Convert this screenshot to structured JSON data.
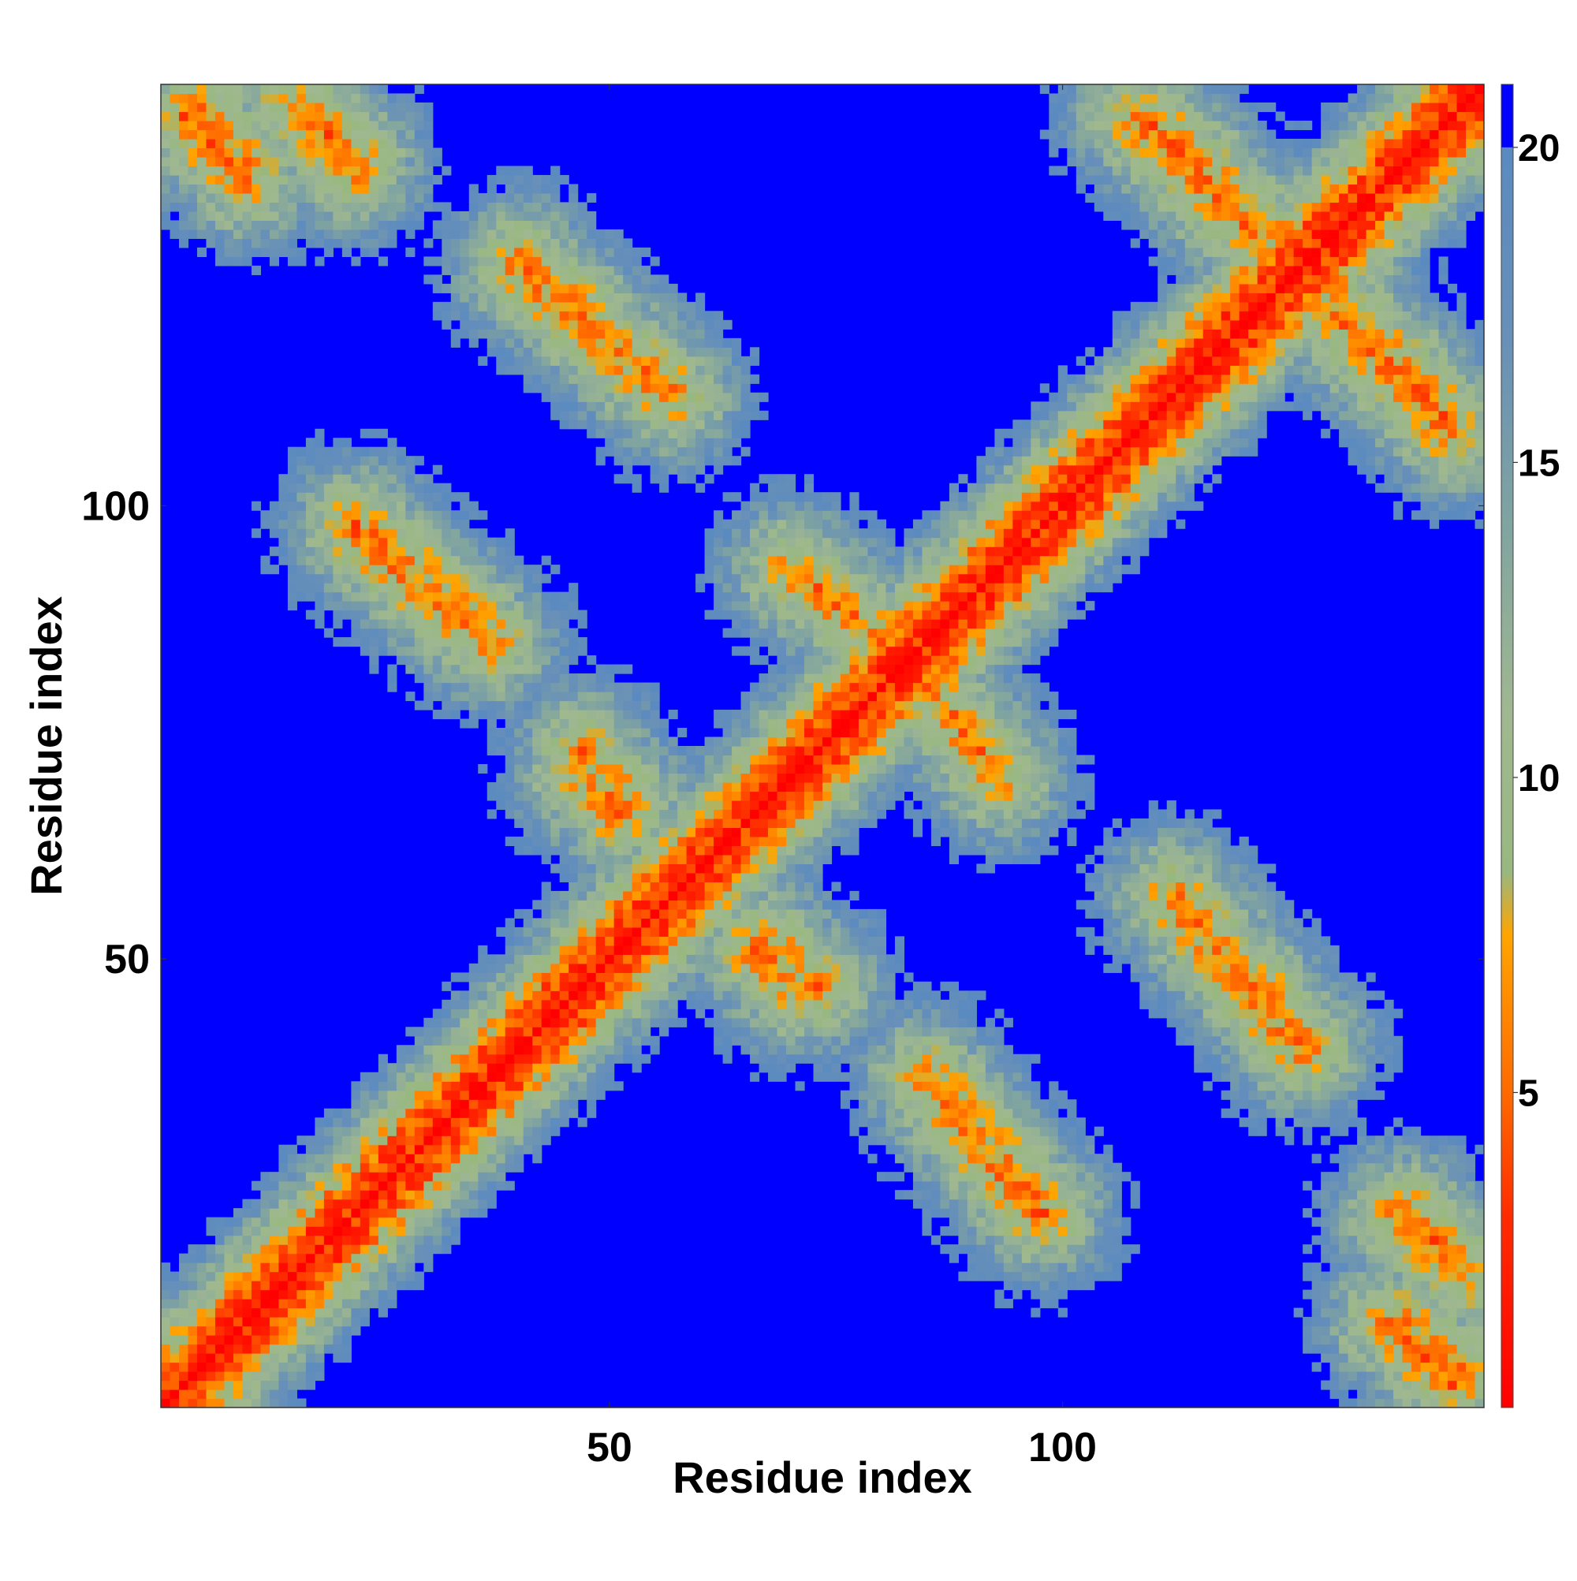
{
  "chart_data": {
    "type": "heatmap",
    "title": "",
    "xlabel": "Residue index",
    "ylabel": "Residue index",
    "n_residues": 146,
    "xlim": [
      1,
      146
    ],
    "ylim": [
      1,
      146
    ],
    "x_ticks": [
      50,
      100
    ],
    "y_ticks": [
      50,
      100
    ],
    "colorbar": {
      "range": [
        0,
        21
      ],
      "ticks": [
        5,
        10,
        15,
        20
      ],
      "cutoff": 20,
      "above_cutoff_color": "#0000ff",
      "stops": [
        {
          "value": 0,
          "color": "#ff0000"
        },
        {
          "value": 3,
          "color": "#ff2a00"
        },
        {
          "value": 5,
          "color": "#ff6a00"
        },
        {
          "value": 6.5,
          "color": "#ff8c00"
        },
        {
          "value": 7.5,
          "color": "#ffa500"
        },
        {
          "value": 8.5,
          "color": "#98b880"
        },
        {
          "value": 11,
          "color": "#a0b890"
        },
        {
          "value": 14,
          "color": "#80a4a0"
        },
        {
          "value": 17,
          "color": "#6890b8"
        },
        {
          "value": 20,
          "color": "#5a8ac0"
        }
      ]
    },
    "grid": false,
    "description_of_values": "pairwise residue distance map (Å); symmetric; values above 20 shown in blue",
    "contact_segments": [
      {
        "i": [
          1,
          146
        ],
        "j": [
          1,
          146
        ],
        "kind": "diagonal"
      },
      {
        "i": [
          3,
          10
        ],
        "j": [
          143,
          136
        ],
        "kind": "antiparallel"
      },
      {
        "i": [
          16,
          22
        ],
        "j": [
          144,
          138
        ],
        "kind": "antiparallel"
      },
      {
        "i": [
          22,
          37
        ],
        "j": [
          97,
          85
        ],
        "kind": "antiparallel"
      },
      {
        "i": [
          40,
          56
        ],
        "j": [
          127,
          113
        ],
        "kind": "antiparallel"
      },
      {
        "i": [
          47,
          51
        ],
        "j": [
          70,
          66
        ],
        "kind": "antiparallel"
      },
      {
        "i": [
          67,
          73
        ],
        "j": [
          52,
          47
        ],
        "kind": "antiparallel"
      },
      {
        "i": [
          70,
          83
        ],
        "j": [
          93,
          83
        ],
        "kind": "antiparallel"
      },
      {
        "i": [
          85,
          92
        ],
        "j": [
          80,
          72
        ],
        "kind": "antiparallel"
      },
      {
        "i": [
          85,
          98
        ],
        "j": [
          37,
          22
        ],
        "kind": "antiparallel"
      },
      {
        "i": [
          108,
          125
        ],
        "j": [
          143,
          126
        ],
        "kind": "antiparallel"
      },
      {
        "i": [
          112,
          126
        ],
        "j": [
          57,
          40
        ],
        "kind": "antiparallel"
      },
      {
        "i": [
          127,
          142
        ],
        "j": [
          126,
          110
        ],
        "kind": "antiparallel"
      },
      {
        "i": [
          137,
          144
        ],
        "j": [
          22,
          15
        ],
        "kind": "antiparallel"
      },
      {
        "i": [
          137,
          144
        ],
        "j": [
          10,
          4
        ],
        "kind": "antiparallel"
      }
    ]
  }
}
